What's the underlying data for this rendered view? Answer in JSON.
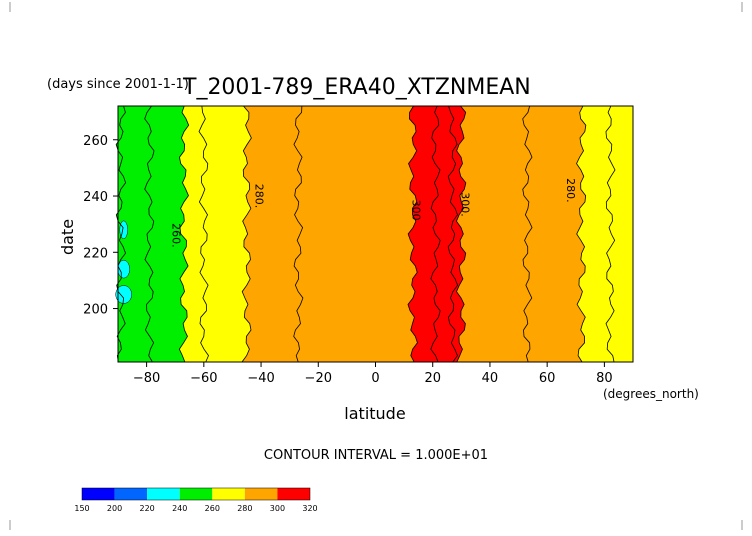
{
  "chart_data": {
    "type": "contour",
    "title": "T_2001-789_ERA40_XTZNMEAN",
    "title_prefix": "(days since 2001-1-1)",
    "xlabel": "latitude",
    "x_units": "(degrees_north)",
    "ylabel": "date",
    "xlim": [
      -90,
      90
    ],
    "ylim": [
      181,
      272
    ],
    "x_ticks": [
      -80,
      -60,
      -40,
      -20,
      0,
      20,
      40,
      60,
      80
    ],
    "y_ticks": [
      200,
      220,
      240,
      260
    ],
    "footer": "CONTOUR INTERVAL = 1.000E+01",
    "contour_labels": [
      {
        "text": "260.",
        "x": -71,
        "y": 226
      },
      {
        "text": "280.",
        "x": -42,
        "y": 240
      },
      {
        "text": "300",
        "x": 13,
        "y": 235
      },
      {
        "text": "300.",
        "x": 30,
        "y": 237
      },
      {
        "text": "280.",
        "x": 67,
        "y": 242
      }
    ],
    "bands": [
      {
        "min": 150,
        "max": 200,
        "color": "#0000ff"
      },
      {
        "min": 200,
        "max": 220,
        "color": "#0066ff"
      },
      {
        "min": 220,
        "max": 240,
        "color": "#00ffff"
      },
      {
        "min": 240,
        "max": 260,
        "color": "#00ee00"
      },
      {
        "min": 260,
        "max": 280,
        "color": "#ffff00"
      },
      {
        "min": 280,
        "max": 300,
        "color": "#ffa500"
      },
      {
        "min": 300,
        "max": 320,
        "color": "#ff0000"
      }
    ],
    "colorbar_ticks": [
      150,
      200,
      220,
      240,
      260,
      280,
      300,
      320
    ],
    "isolines": [
      {
        "level": 240,
        "x": -89
      },
      {
        "level": 250,
        "x": -79
      },
      {
        "level": 260,
        "x": -67
      },
      {
        "level": 270,
        "x": -60
      },
      {
        "level": 280,
        "x": -45
      },
      {
        "level": 290,
        "x": -27
      },
      {
        "level": 300,
        "x": 13
      },
      {
        "level": 310,
        "x": 21
      },
      {
        "level": 310,
        "x": 27
      },
      {
        "level": 300,
        "x": 30
      },
      {
        "level": 290,
        "x": 53
      },
      {
        "level": 280,
        "x": 72
      },
      {
        "level": 270,
        "x": 82
      }
    ]
  }
}
